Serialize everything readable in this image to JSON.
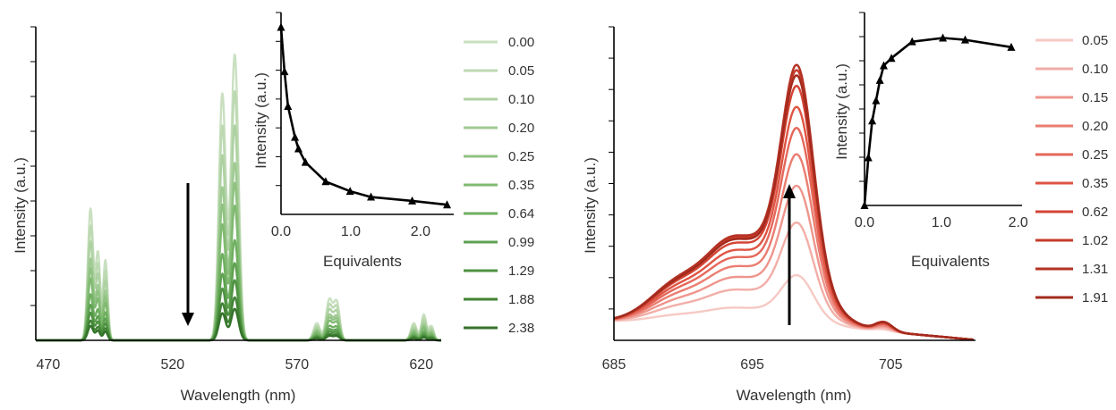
{
  "chart_data": [
    {
      "type": "line",
      "xlabel": "Wavelength (nm)",
      "ylabel": "Intensity (a.u.)",
      "xlim": [
        465,
        628
      ],
      "xticks": [
        "470",
        "520",
        "570",
        "620"
      ],
      "series_colors": [
        "#c9e0c0",
        "#bcd9b1",
        "#aed1a2",
        "#9fca92",
        "#90c282",
        "#80ba71",
        "#6faf61",
        "#5ea151",
        "#4f9242",
        "#418335",
        "#34732a"
      ],
      "series": [
        {
          "name": "0.00",
          "scale": 1.0
        },
        {
          "name": "0.05",
          "scale": 0.87
        },
        {
          "name": "0.10",
          "scale": 0.75
        },
        {
          "name": "0.20",
          "scale": 0.62
        },
        {
          "name": "0.25",
          "scale": 0.55
        },
        {
          "name": "0.35",
          "scale": 0.47
        },
        {
          "name": "0.64",
          "scale": 0.35
        },
        {
          "name": "0.99",
          "scale": 0.27
        },
        {
          "name": "1.29",
          "scale": 0.21
        },
        {
          "name": "1.88",
          "scale": 0.15
        },
        {
          "name": "2.38",
          "scale": 0.11
        }
      ],
      "arrow": "down",
      "inset": {
        "type": "scatter-line",
        "xlabel": "Equivalents",
        "ylabel": "Intensity (a.u.)",
        "xlim": [
          0,
          2.45
        ],
        "ylim": [
          0,
          1.0
        ],
        "xticks": [
          "0.0",
          "1.0",
          "2.0"
        ],
        "x": [
          0.0,
          0.05,
          0.1,
          0.2,
          0.25,
          0.35,
          0.64,
          0.99,
          1.29,
          1.88,
          2.38
        ],
        "y": [
          0.97,
          0.74,
          0.56,
          0.4,
          0.34,
          0.27,
          0.17,
          0.12,
          0.09,
          0.07,
          0.05
        ]
      }
    },
    {
      "type": "line",
      "xlabel": "Wavelength (nm)",
      "ylabel": "Intensity (a.u.)",
      "xlim": [
        685,
        711
      ],
      "xticks": [
        "685",
        "695",
        "705"
      ],
      "series_colors": [
        "#f6c9c4",
        "#f2aea7",
        "#ee958c",
        "#ea7d71",
        "#e5675a",
        "#df5443",
        "#d44434",
        "#c63a2a",
        "#b53224",
        "#a32b1e"
      ],
      "series": [
        {
          "name": "0.05",
          "scale": 0.2
        },
        {
          "name": "0.10",
          "scale": 0.4
        },
        {
          "name": "0.15",
          "scale": 0.54
        },
        {
          "name": "0.20",
          "scale": 0.66
        },
        {
          "name": "0.25",
          "scale": 0.76
        },
        {
          "name": "0.35",
          "scale": 0.84
        },
        {
          "name": "0.62",
          "scale": 0.92
        },
        {
          "name": "1.02",
          "scale": 0.98
        },
        {
          "name": "1.31",
          "scale": 1.0
        },
        {
          "name": "1.91",
          "scale": 0.96
        }
      ],
      "arrow": "up",
      "inset": {
        "type": "scatter-line",
        "xlabel": "Equivalents",
        "ylabel": "Intensity (a.u.)",
        "xlim": [
          0,
          2.05
        ],
        "ylim": [
          0,
          1.0
        ],
        "xticks": [
          "0.0",
          "1.0",
          "2.0"
        ],
        "x": [
          0.0,
          0.05,
          0.1,
          0.15,
          0.2,
          0.25,
          0.35,
          0.62,
          1.02,
          1.31,
          1.91
        ],
        "y": [
          0.0,
          0.26,
          0.46,
          0.57,
          0.68,
          0.76,
          0.8,
          0.89,
          0.91,
          0.9,
          0.86
        ]
      }
    }
  ]
}
